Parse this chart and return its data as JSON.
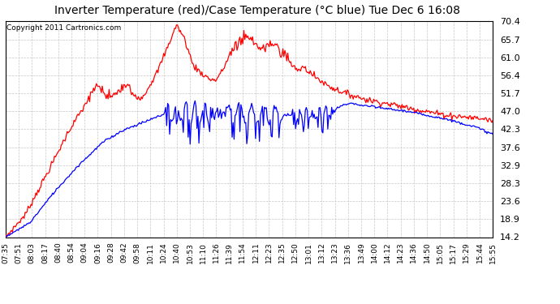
{
  "title": "Inverter Temperature (red)/Case Temperature (°C blue) Tue Dec 6 16:08",
  "copyright": "Copyright 2011 Cartronics.com",
  "yticks": [
    14.2,
    18.9,
    23.6,
    28.3,
    32.9,
    37.6,
    42.3,
    47.0,
    51.7,
    56.4,
    61.0,
    65.7,
    70.4
  ],
  "ymin": 14.2,
  "ymax": 70.4,
  "xtick_labels": [
    "07:35",
    "07:51",
    "08:03",
    "08:17",
    "08:40",
    "08:54",
    "09:04",
    "09:16",
    "09:28",
    "09:42",
    "09:58",
    "10:11",
    "10:24",
    "10:40",
    "10:53",
    "11:10",
    "11:26",
    "11:39",
    "11:54",
    "12:11",
    "12:23",
    "12:35",
    "12:50",
    "13:01",
    "13:12",
    "13:23",
    "13:36",
    "13:49",
    "14:00",
    "14:12",
    "14:23",
    "14:36",
    "14:50",
    "15:05",
    "15:17",
    "15:29",
    "15:44",
    "15:55"
  ],
  "bg_color": "#ffffff",
  "plot_bg_color": "#ffffff",
  "grid_color": "#c8c8c8",
  "red_color": "#ff0000",
  "blue_color": "#0000ff",
  "title_fontsize": 10,
  "copyright_fontsize": 6.5,
  "yticklabel_fontsize": 8,
  "xticklabel_fontsize": 6.5
}
